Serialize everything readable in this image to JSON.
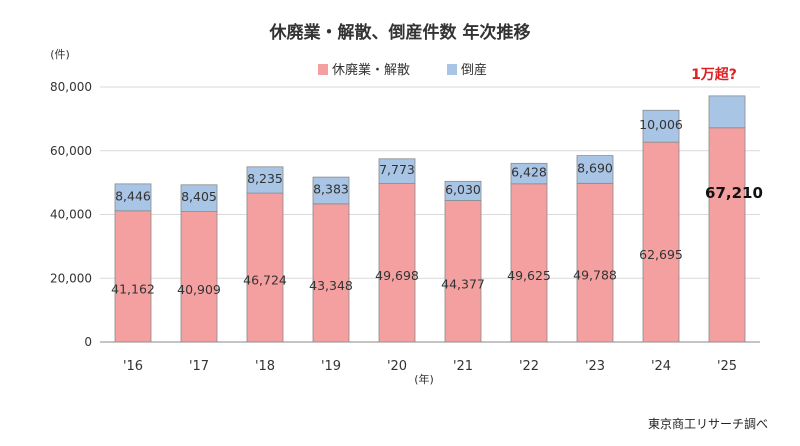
{
  "chart_data": {
    "type": "bar",
    "stacked": true,
    "title": "休廃業・解散、倒産件数 年次推移",
    "y_unit_label": "(件)",
    "x_unit_label": "(年)",
    "ylim": [
      0,
      80000
    ],
    "y_ticks": [
      "0",
      "20,000",
      "40,000",
      "60,000",
      "80,000"
    ],
    "y_tick_values": [
      0,
      20000,
      40000,
      60000,
      80000
    ],
    "grid": true,
    "legend_position": "top",
    "categories": [
      "'16",
      "'17",
      "'18",
      "'19",
      "'20",
      "'21",
      "'22",
      "'23",
      "'24",
      "'25"
    ],
    "series": [
      {
        "name": "休廃業・解散",
        "color": "#f5a0a0",
        "values": [
          41162,
          40909,
          46724,
          43348,
          49698,
          44377,
          49625,
          49788,
          62695,
          67210
        ],
        "labels": [
          "41,162",
          "40,909",
          "46,724",
          "43,348",
          "49,698",
          "44,377",
          "49,625",
          "49,788",
          "62,695",
          "67,210"
        ]
      },
      {
        "name": "倒産",
        "color": "#a9c5e6",
        "values": [
          8446,
          8405,
          8235,
          8383,
          7773,
          6030,
          6428,
          8690,
          10006,
          10000
        ],
        "labels": [
          "8,446",
          "8,405",
          "8,235",
          "8,383",
          "7,773",
          "6,030",
          "6,428",
          "8,690",
          "10,006",
          ""
        ]
      }
    ],
    "annotation": "1万超?",
    "source": "東京商工リサーチ調べ"
  }
}
